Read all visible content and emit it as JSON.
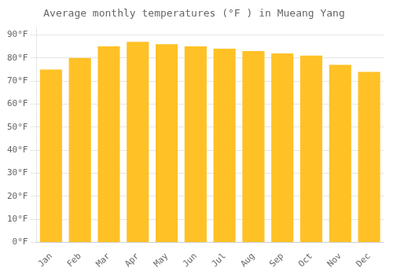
{
  "chart_data": {
    "type": "bar",
    "title": "Average monthly temperatures (°F ) in Mueang Yang",
    "categories": [
      "Jan",
      "Feb",
      "Mar",
      "Apr",
      "May",
      "Jun",
      "Jul",
      "Aug",
      "Sep",
      "Oct",
      "Nov",
      "Dec"
    ],
    "values": [
      75,
      80,
      85,
      87,
      86,
      85,
      84,
      83,
      82,
      81,
      77,
      74
    ],
    "color": "#FFC125",
    "ylim": [
      0,
      93
    ],
    "yticks": [
      {
        "value": 0,
        "label": "0°F"
      },
      {
        "value": 10,
        "label": "10°F"
      },
      {
        "value": 20,
        "label": "20°F"
      },
      {
        "value": 30,
        "label": "30°F"
      },
      {
        "value": 40,
        "label": "40°F"
      },
      {
        "value": 50,
        "label": "50°F"
      },
      {
        "value": 60,
        "label": "60°F"
      },
      {
        "value": 70,
        "label": "70°F"
      },
      {
        "value": 80,
        "label": "80°F"
      },
      {
        "value": 90,
        "label": "90°F"
      }
    ],
    "grid": true
  }
}
